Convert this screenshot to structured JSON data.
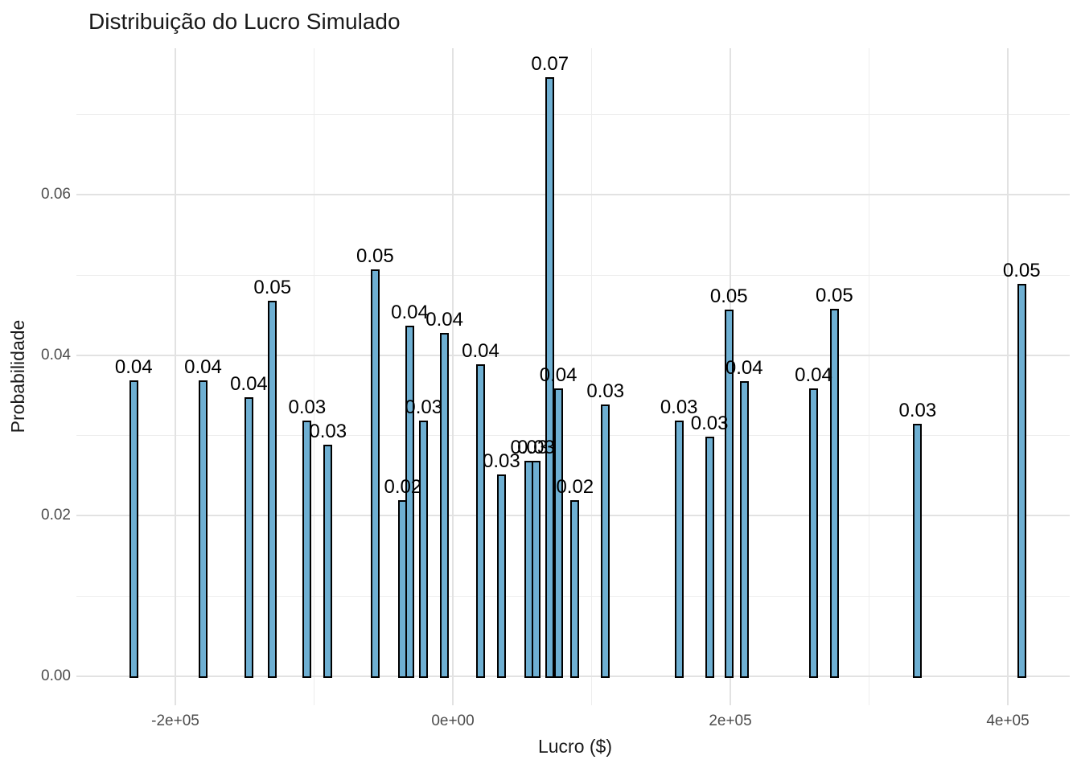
{
  "chart_data": {
    "type": "bar",
    "title": "Distribuição do Lucro Simulado",
    "xlabel": "Lucro ($)",
    "ylabel": "Probabilidade",
    "legend": "none",
    "grid": "major+minor, light gray, no axis lines (ggplot theme_minimal style)",
    "bar_fill_color": "#6eafd2",
    "bar_outline_color": "#000000",
    "xlim": [
      -271000,
      445000
    ],
    "ylim": [
      -0.0036,
      0.0783
    ],
    "x_ticks": [
      {
        "value": -200000,
        "label": "-2e+05"
      },
      {
        "value": 0,
        "label": "0e+00"
      },
      {
        "value": 200000,
        "label": "2e+05"
      },
      {
        "value": 400000,
        "label": "4e+05"
      }
    ],
    "y_ticks": [
      {
        "value": 0.0,
        "label": "0.00"
      },
      {
        "value": 0.02,
        "label": "0.02"
      },
      {
        "value": 0.04,
        "label": "0.04"
      },
      {
        "value": 0.06,
        "label": "0.06"
      }
    ],
    "x_minor": [
      -100000,
      100000,
      300000
    ],
    "y_minor": [
      0.01,
      0.03,
      0.05,
      0.07
    ],
    "bars": [
      {
        "x": -230000,
        "prob": 0.0369,
        "label": "0.04"
      },
      {
        "x": -180000,
        "prob": 0.0369,
        "label": "0.04"
      },
      {
        "x": -147000,
        "prob": 0.0348,
        "label": "0.04"
      },
      {
        "x": -130000,
        "prob": 0.0468,
        "label": "0.05"
      },
      {
        "x": -105000,
        "prob": 0.0319,
        "label": "0.03"
      },
      {
        "x": -90000,
        "prob": 0.0289,
        "label": "0.03"
      },
      {
        "x": -56000,
        "prob": 0.0507,
        "label": "0.05"
      },
      {
        "x": -36000,
        "prob": 0.0219,
        "label": "0.02"
      },
      {
        "x": -31000,
        "prob": 0.0437,
        "label": "0.04"
      },
      {
        "x": -21000,
        "prob": 0.0319,
        "label": "0.03"
      },
      {
        "x": -6000,
        "prob": 0.0428,
        "label": "0.04"
      },
      {
        "x": 20000,
        "prob": 0.0389,
        "label": "0.04"
      },
      {
        "x": 35000,
        "prob": 0.0252,
        "label": "0.03"
      },
      {
        "x": 55000,
        "prob": 0.0269,
        "label": "0.03"
      },
      {
        "x": 60000,
        "prob": 0.0269,
        "label": "0.03"
      },
      {
        "x": 70000,
        "prob": 0.0746,
        "label": "0.07"
      },
      {
        "x": 76000,
        "prob": 0.0359,
        "label": "0.04"
      },
      {
        "x": 88000,
        "prob": 0.0219,
        "label": "0.02"
      },
      {
        "x": 110000,
        "prob": 0.0339,
        "label": "0.03"
      },
      {
        "x": 163000,
        "prob": 0.0319,
        "label": "0.03"
      },
      {
        "x": 185000,
        "prob": 0.0299,
        "label": "0.03"
      },
      {
        "x": 199000,
        "prob": 0.0457,
        "label": "0.05"
      },
      {
        "x": 210000,
        "prob": 0.0368,
        "label": "0.04"
      },
      {
        "x": 260000,
        "prob": 0.0359,
        "label": "0.04"
      },
      {
        "x": 275000,
        "prob": 0.0458,
        "label": "0.05"
      },
      {
        "x": 335000,
        "prob": 0.0315,
        "label": "0.03"
      },
      {
        "x": 410000,
        "prob": 0.0489,
        "label": "0.05"
      }
    ]
  }
}
